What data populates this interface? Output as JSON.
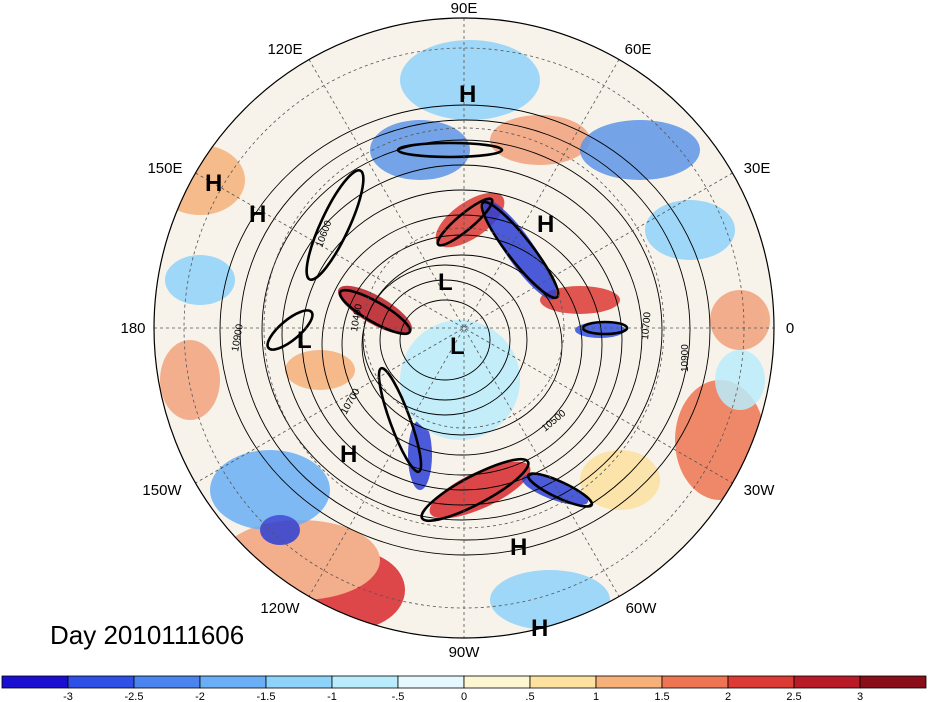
{
  "date_label": "Day 2010111606",
  "longitude_labels": [
    "90E",
    "60E",
    "30E",
    "0",
    "30W",
    "60W",
    "90W",
    "120W",
    "150W",
    "180",
    "150E",
    "120E"
  ],
  "pressure_centers": [
    "H",
    "H",
    "H",
    "H",
    "H",
    "H",
    "H",
    "L",
    "L",
    "L"
  ],
  "contour_labels": [
    "10900",
    "10700",
    "10500",
    "10700",
    "10900",
    "10600",
    "10400"
  ],
  "colorbar": {
    "ticks": [
      "-3",
      "-2.5",
      "-2",
      "-1.5",
      "-1",
      "-.5",
      "0",
      ".5",
      "1",
      "1.5",
      "2",
      "2.5",
      "3"
    ],
    "colors": [
      "#1a0fd1",
      "#2f50e6",
      "#4b84ee",
      "#6aaff5",
      "#8ed3fa",
      "#b9ecfc",
      "#e6f8fd",
      "#fdf6d2",
      "#fce1a0",
      "#f6b07a",
      "#ee7553",
      "#dc3a35",
      "#b81b27",
      "#8a0d1a"
    ]
  },
  "field_colors": {
    "strong_positive": "#d9292e",
    "positive": "#f2a27c",
    "negative": "#5d95e8",
    "strong_negative": "#2b3fd6",
    "neutral": "#f7f3ea"
  }
}
